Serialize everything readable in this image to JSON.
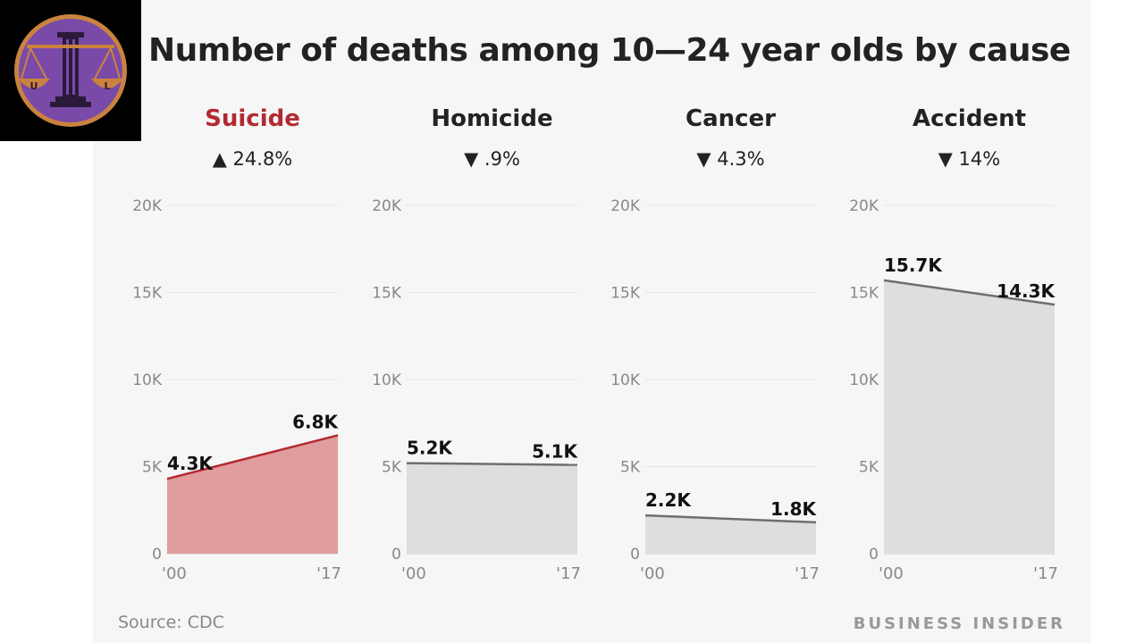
{
  "colors": {
    "highlight": "#b22a32",
    "highlight_fill": "#e19c9c",
    "neutral_line": "#6e6e6e",
    "neutral_fill": "#dedede",
    "logo_ring": "#c9833f",
    "logo_disc": "#7a4aa8"
  },
  "logo": {
    "icon": "scales-of-justice-icon",
    "lettering": "UL"
  },
  "chart_data": {
    "type": "area",
    "title": "Number of deaths among 10—24 year olds by cause",
    "source": "Source: CDC",
    "brand": "BUSINESS INSIDER",
    "x_ticks": [
      "'00",
      "'17"
    ],
    "ylim": [
      0,
      20000
    ],
    "y_ticks": [
      {
        "value": 0,
        "label": "0"
      },
      {
        "value": 5000,
        "label": "5K"
      },
      {
        "value": 10000,
        "label": "10K"
      },
      {
        "value": 15000,
        "label": "15K"
      },
      {
        "value": 20000,
        "label": "20K"
      }
    ],
    "grid": true,
    "panels": [
      {
        "name": "Suicide",
        "direction": "up",
        "change": "24.8%",
        "highlight": true,
        "values": [
          4300,
          6800
        ],
        "labels": [
          "4.3K",
          "6.8K"
        ]
      },
      {
        "name": "Homicide",
        "direction": "down",
        "change": ".9%",
        "highlight": false,
        "values": [
          5200,
          5100
        ],
        "labels": [
          "5.2K",
          "5.1K"
        ]
      },
      {
        "name": "Cancer",
        "direction": "down",
        "change": "4.3%",
        "highlight": false,
        "values": [
          2200,
          1800
        ],
        "labels": [
          "2.2K",
          "1.8K"
        ]
      },
      {
        "name": "Accident",
        "direction": "down",
        "change": "14%",
        "highlight": false,
        "values": [
          15700,
          14300
        ],
        "labels": [
          "15.7K",
          "14.3K"
        ]
      }
    ]
  }
}
